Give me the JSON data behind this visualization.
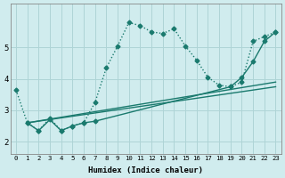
{
  "xlabel": "Humidex (Indice chaleur)",
  "bg_color": "#d0ecee",
  "grid_color": "#aed4d6",
  "line_color": "#1a7a6e",
  "xlim": [
    -0.5,
    23.5
  ],
  "ylim": [
    1.6,
    6.4
  ],
  "xticks": [
    0,
    1,
    2,
    3,
    4,
    5,
    6,
    7,
    8,
    9,
    10,
    11,
    12,
    13,
    14,
    15,
    16,
    17,
    18,
    19,
    20,
    21,
    22,
    23
  ],
  "yticks": [
    2,
    3,
    4,
    5
  ],
  "series": [
    {
      "x": [
        0,
        1,
        2,
        3,
        4,
        5,
        6,
        7,
        8,
        9,
        10,
        11,
        12,
        13,
        14,
        15,
        16,
        17,
        18,
        19,
        20,
        21,
        22,
        23
      ],
      "y": [
        3.65,
        2.6,
        2.35,
        2.75,
        2.35,
        2.5,
        2.6,
        3.25,
        4.35,
        5.05,
        5.8,
        5.7,
        5.5,
        5.45,
        5.6,
        5.05,
        4.6,
        4.05,
        3.8,
        3.75,
        3.9,
        5.2,
        5.35,
        5.5
      ],
      "style": ":",
      "marker": "D",
      "markersize": 2.5,
      "lw": 1.0
    },
    {
      "x": [
        1,
        2,
        3,
        4,
        5,
        6,
        7,
        19,
        20,
        21,
        22,
        23
      ],
      "y": [
        2.6,
        2.35,
        2.7,
        2.35,
        2.5,
        2.6,
        2.65,
        3.75,
        4.05,
        4.55,
        5.2,
        5.5
      ],
      "style": "-",
      "marker": "D",
      "markersize": 2.5,
      "lw": 1.0
    },
    {
      "x": [
        1,
        23
      ],
      "y": [
        2.6,
        3.75
      ],
      "style": "-",
      "marker": null,
      "markersize": 0,
      "lw": 1.0
    },
    {
      "x": [
        1,
        23
      ],
      "y": [
        2.6,
        3.9
      ],
      "style": "-",
      "marker": null,
      "markersize": 0,
      "lw": 1.0
    }
  ]
}
